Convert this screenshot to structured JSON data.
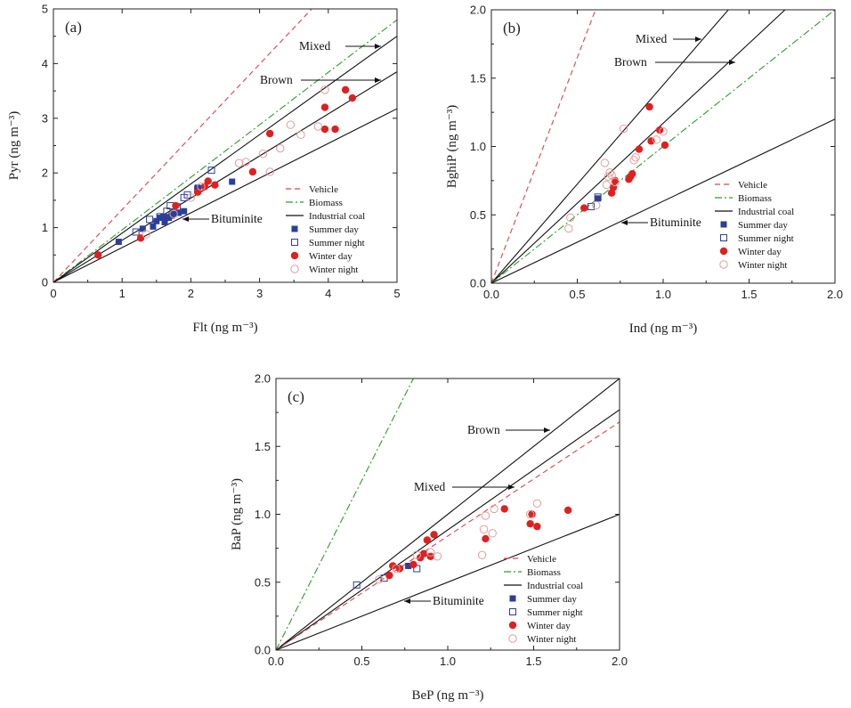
{
  "colors": {
    "vehicle": "#e0424f",
    "biomass": "#2f9a2f",
    "industrial": "#111111",
    "summer": "#2a3f9a",
    "winter": "#e02020",
    "winter_night": "#e89a9a"
  },
  "legend_labels": [
    "Vehicle",
    "Biomass",
    "Industrial coal",
    "Summer day",
    "Summer night",
    "Winter day",
    "Winter night"
  ],
  "chart_data": [
    {
      "id": "a",
      "type": "scatter",
      "panel_label": "(a)",
      "xlabel": "Flt (ng m⁻³)",
      "ylabel": "Pyr (ng m⁻³)",
      "xlim": [
        0,
        5
      ],
      "ylim": [
        0,
        5
      ],
      "xticks": [
        "0",
        "1",
        "2",
        "3",
        "4",
        "5"
      ],
      "yticks": [
        "0",
        "1",
        "2",
        "3",
        "4",
        "5"
      ],
      "legend_position": "lower-right",
      "lines": [
        {
          "name": "Vehicle",
          "slope": 1.33
        },
        {
          "name": "Biomass",
          "slope": 0.96
        },
        {
          "name": "Mixed",
          "slope": 0.9
        },
        {
          "name": "Brown",
          "slope": 0.77
        },
        {
          "name": "Bituminite",
          "slope": 0.635
        }
      ],
      "annotations": [
        {
          "text": "Mixed",
          "target": "Mixed"
        },
        {
          "text": "Brown",
          "target": "Brown"
        },
        {
          "text": "Bituminite",
          "target": "Bituminite"
        }
      ],
      "series": [
        {
          "name": "Summer day",
          "points": [
            [
              0.95,
              0.74
            ],
            [
              1.3,
              0.98
            ],
            [
              1.45,
              1.02
            ],
            [
              1.5,
              1.12
            ],
            [
              1.55,
              1.18
            ],
            [
              1.6,
              1.2
            ],
            [
              1.62,
              1.1
            ],
            [
              1.68,
              1.18
            ],
            [
              1.72,
              1.22
            ],
            [
              1.75,
              1.25
            ],
            [
              1.82,
              1.27
            ],
            [
              1.9,
              1.3
            ],
            [
              2.1,
              1.73
            ],
            [
              2.6,
              1.84
            ]
          ]
        },
        {
          "name": "Summer night",
          "points": [
            [
              1.2,
              0.92
            ],
            [
              1.4,
              1.15
            ],
            [
              1.55,
              1.2
            ],
            [
              1.65,
              1.3
            ],
            [
              1.7,
              1.4
            ],
            [
              1.8,
              1.38
            ],
            [
              1.9,
              1.55
            ],
            [
              1.95,
              1.6
            ],
            [
              2.1,
              1.7
            ],
            [
              2.3,
              2.05
            ]
          ]
        },
        {
          "name": "Winter day",
          "points": [
            [
              0.65,
              0.5
            ],
            [
              1.27,
              0.81
            ],
            [
              1.78,
              1.4
            ],
            [
              2.1,
              1.65
            ],
            [
              2.2,
              1.75
            ],
            [
              2.25,
              1.85
            ],
            [
              2.35,
              1.78
            ],
            [
              2.9,
              2.02
            ],
            [
              3.15,
              2.72
            ],
            [
              3.95,
              2.8
            ],
            [
              3.95,
              3.2
            ],
            [
              4.1,
              2.8
            ],
            [
              4.25,
              3.52
            ],
            [
              4.35,
              3.37
            ]
          ]
        },
        {
          "name": "Winter night",
          "points": [
            [
              1.35,
              0.88
            ],
            [
              1.75,
              1.25
            ],
            [
              2.0,
              1.55
            ],
            [
              2.15,
              1.75
            ],
            [
              2.7,
              2.18
            ],
            [
              2.8,
              2.2
            ],
            [
              3.05,
              2.35
            ],
            [
              3.15,
              2.02
            ],
            [
              3.3,
              2.45
            ],
            [
              3.45,
              2.88
            ],
            [
              3.6,
              2.7
            ],
            [
              3.85,
              2.85
            ],
            [
              3.95,
              3.52
            ]
          ]
        }
      ]
    },
    {
      "id": "b",
      "type": "scatter",
      "panel_label": "(b)",
      "xlabel": "Ind (ng m⁻³)",
      "ylabel": "BghiP (ng m⁻³)",
      "xlim": [
        0,
        2
      ],
      "ylim": [
        0,
        2
      ],
      "xticks": [
        "0.0",
        "0.5",
        "1.0",
        "1.5",
        "2.0"
      ],
      "yticks": [
        "0.0",
        "0.5",
        "1.0",
        "1.5",
        "2.0"
      ],
      "legend_position": "lower-right",
      "lines": [
        {
          "name": "Vehicle",
          "slope": 3.3
        },
        {
          "name": "Mixed",
          "slope": 1.45
        },
        {
          "name": "Brown",
          "slope": 1.17
        },
        {
          "name": "Biomass",
          "slope": 1.0
        },
        {
          "name": "Bituminite",
          "slope": 0.6
        }
      ],
      "annotations": [
        {
          "text": "Mixed",
          "target": "Mixed"
        },
        {
          "text": "Brown",
          "target": "Brown"
        },
        {
          "text": "Bituminite",
          "target": "Bituminite"
        }
      ],
      "series": [
        {
          "name": "Summer day",
          "points": [
            [
              0.62,
              0.62
            ]
          ]
        },
        {
          "name": "Summer night",
          "points": [
            [
              0.58,
              0.56
            ],
            [
              0.62,
              0.63
            ]
          ]
        },
        {
          "name": "Winter day",
          "points": [
            [
              0.54,
              0.55
            ],
            [
              0.7,
              0.66
            ],
            [
              0.71,
              0.7
            ],
            [
              0.72,
              0.75
            ],
            [
              0.8,
              0.76
            ],
            [
              0.81,
              0.78
            ],
            [
              0.82,
              0.8
            ],
            [
              0.86,
              0.98
            ],
            [
              0.92,
              1.29
            ],
            [
              0.93,
              1.04
            ],
            [
              0.98,
              1.12
            ],
            [
              1.01,
              1.01
            ]
          ]
        },
        {
          "name": "Winter night",
          "points": [
            [
              0.45,
              0.4
            ],
            [
              0.46,
              0.48
            ],
            [
              0.61,
              0.57
            ],
            [
              0.66,
              0.88
            ],
            [
              0.67,
              0.72
            ],
            [
              0.68,
              0.78
            ],
            [
              0.69,
              0.81
            ],
            [
              0.7,
              0.79
            ],
            [
              0.72,
              0.74
            ],
            [
              0.77,
              1.13
            ],
            [
              0.83,
              0.9
            ],
            [
              0.84,
              0.92
            ],
            [
              0.96,
              1.05
            ],
            [
              1.0,
              1.11
            ]
          ]
        }
      ]
    },
    {
      "id": "c",
      "type": "scatter",
      "panel_label": "(c)",
      "xlabel": "BeP (ng m⁻³)",
      "ylabel": "BaP (ng m⁻³)",
      "xlim": [
        0,
        2
      ],
      "ylim": [
        0,
        2
      ],
      "xticks": [
        "0.0",
        "0.5",
        "1.0",
        "1.5",
        "2.0"
      ],
      "yticks": [
        "0.0",
        "0.5",
        "1.0",
        "1.5",
        "2.0"
      ],
      "legend_position": "lower-right",
      "lines": [
        {
          "name": "Biomass",
          "slope": 2.5
        },
        {
          "name": "Brown",
          "slope": 1.0
        },
        {
          "name": "Mixed",
          "slope": 0.885
        },
        {
          "name": "Vehicle",
          "slope": 0.84
        },
        {
          "name": "Bituminite",
          "slope": 0.5
        }
      ],
      "annotations": [
        {
          "text": "Brown",
          "target": "Brown"
        },
        {
          "text": "Mixed",
          "target": "Mixed"
        },
        {
          "text": "Bituminite",
          "target": "Bituminite"
        }
      ],
      "series": [
        {
          "name": "Summer day",
          "points": [
            [
              0.77,
              0.62
            ]
          ]
        },
        {
          "name": "Summer night",
          "points": [
            [
              0.47,
              0.48
            ],
            [
              0.63,
              0.53
            ],
            [
              0.82,
              0.6
            ]
          ]
        },
        {
          "name": "Winter day",
          "points": [
            [
              0.66,
              0.55
            ],
            [
              0.68,
              0.62
            ],
            [
              0.72,
              0.6
            ],
            [
              0.8,
              0.63
            ],
            [
              0.84,
              0.68
            ],
            [
              0.86,
              0.71
            ],
            [
              0.88,
              0.81
            ],
            [
              0.9,
              0.69
            ],
            [
              0.92,
              0.85
            ],
            [
              1.22,
              0.82
            ],
            [
              1.33,
              1.04
            ],
            [
              1.48,
              0.93
            ],
            [
              1.49,
              1.0
            ],
            [
              1.52,
              0.91
            ],
            [
              1.7,
              1.03
            ]
          ]
        },
        {
          "name": "Winter night",
          "points": [
            [
              0.6,
              0.52
            ],
            [
              0.7,
              0.6
            ],
            [
              0.82,
              0.7
            ],
            [
              0.9,
              0.72
            ],
            [
              0.94,
              0.69
            ],
            [
              1.2,
              0.7
            ],
            [
              1.21,
              0.89
            ],
            [
              1.22,
              0.99
            ],
            [
              1.26,
              0.86
            ],
            [
              1.27,
              1.04
            ],
            [
              1.48,
              1.0
            ],
            [
              1.52,
              1.08
            ]
          ]
        }
      ]
    }
  ]
}
